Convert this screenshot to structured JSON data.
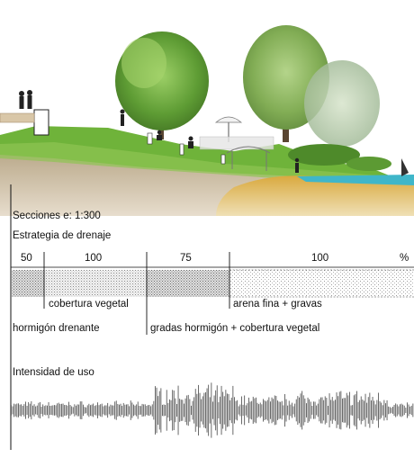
{
  "labels": {
    "scale": "Secciones e: 1:300",
    "drainage_title": "Estrategia de drenaje",
    "usage_title": "Intensidad de uso"
  },
  "percent_header": {
    "values": [
      "50",
      "100",
      "75",
      "100"
    ],
    "unit": "%"
  },
  "materials": {
    "cobertura": "cobertura vegetal",
    "arena": "arena fina + gravas",
    "hormigon": "hormigón drenante",
    "gradas": "gradas hormigón + cobertura vegetal"
  },
  "colors": {
    "grass": "#6fb33a",
    "soil": "#c9b79a",
    "sand": "#d8b35a",
    "water": "#3fb6c9",
    "tree": "#5e9c34",
    "ink": "#111111"
  }
}
